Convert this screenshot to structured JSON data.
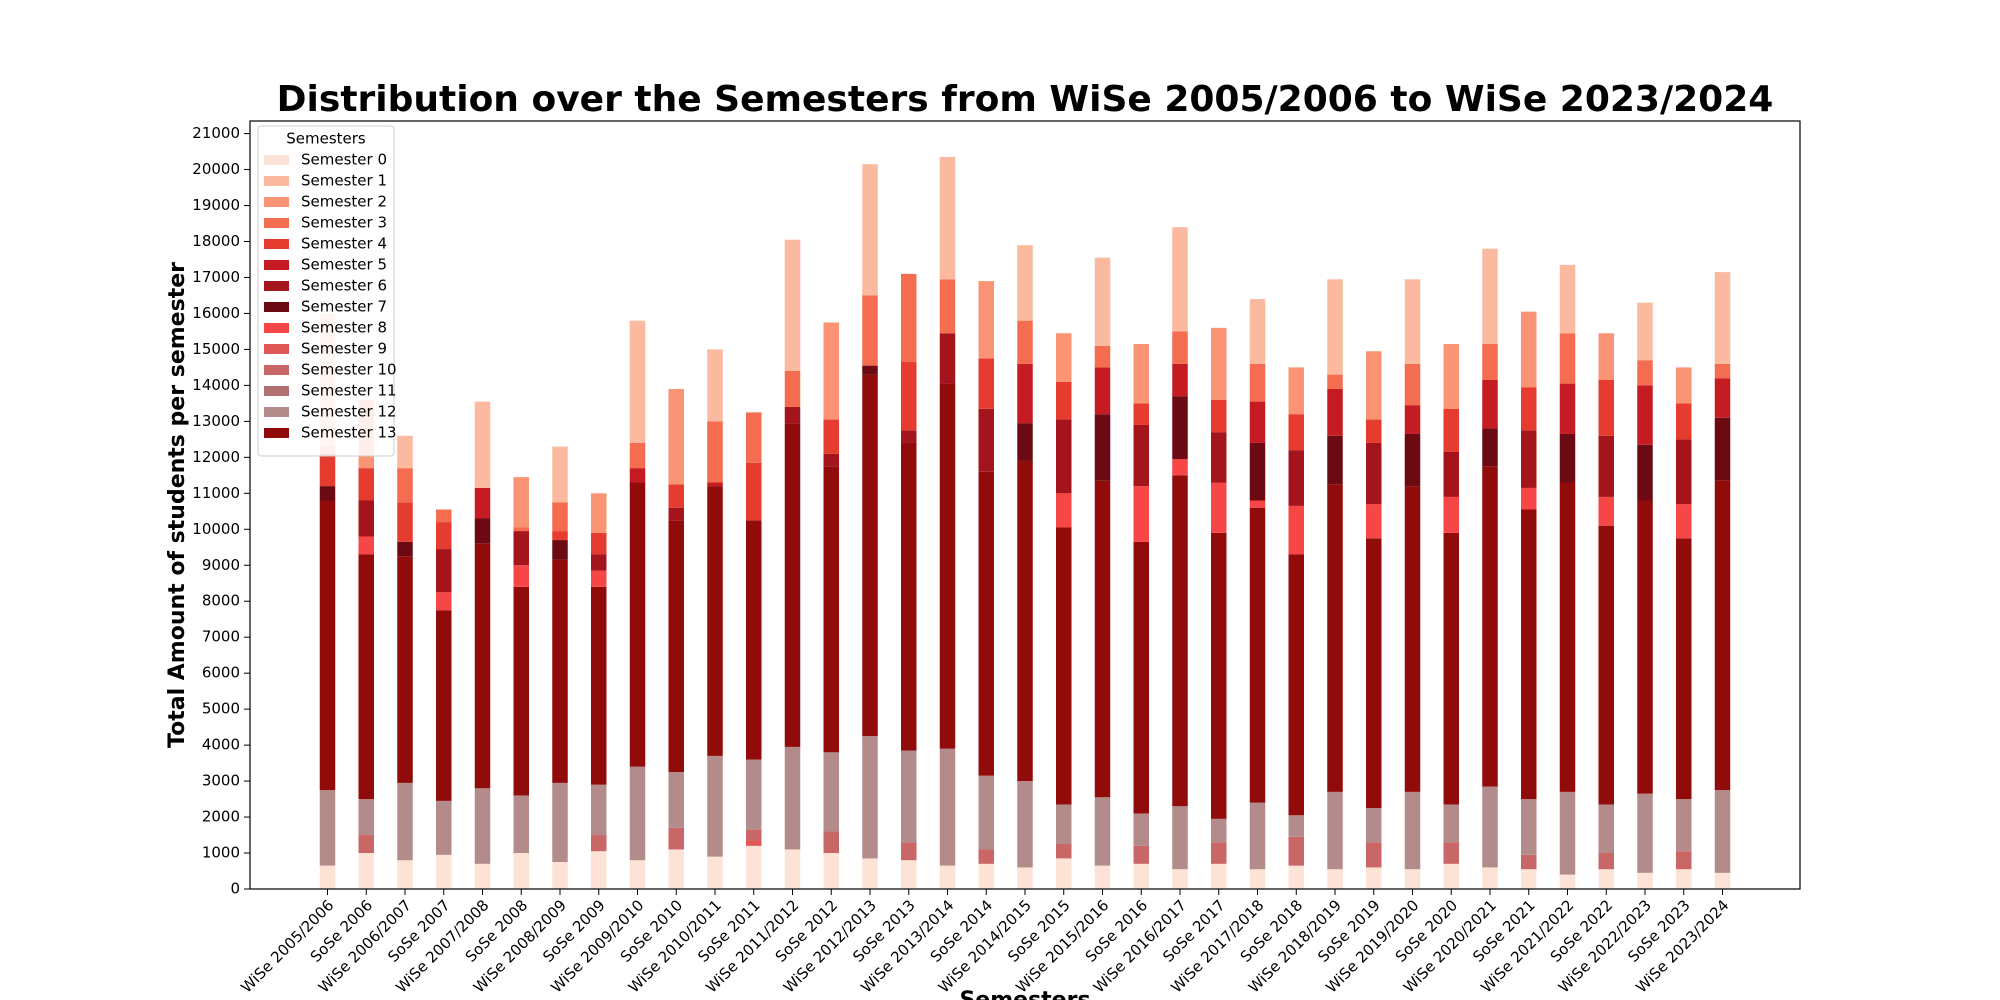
{
  "chart_data": {
    "type": "stacked_bar",
    "title": "Distribution over the Semesters from WiSe 2005/2006 to WiSe 2023/2024",
    "y_label": "Total Amount of students per semester",
    "x_label": "Semesters",
    "legend_title": "Semesters",
    "legend_position": "upper left",
    "categories": [
      "WiSe 2005/2006",
      "SoSe 2006",
      "WiSe 2006/2007",
      "SoSe 2007",
      "WiSe 2007/2008",
      "SoSe 2008",
      "WiSe 2008/2009",
      "SoSe 2009",
      "WiSe 2009/2010",
      "SoSe 2010",
      "WiSe 2010/2011",
      "SoSe 2011",
      "WiSe 2011/2012",
      "SoSe 2012",
      "WiSe 2012/2013",
      "SoSe 2013",
      "WiSe 2013/2014",
      "SoSe 2014",
      "WiSe 2014/2015",
      "SoSe 2015",
      "WiSe 2015/2016",
      "SoSe 2016",
      "WiSe 2016/2017",
      "SoSe 2017",
      "WiSe 2017/2018",
      "SoSe 2018",
      "WiSe 2018/2019",
      "SoSe 2019",
      "WiSe 2019/2020",
      "SoSe 2020",
      "WiSe 2020/2021",
      "SoSe 2021",
      "WiSe 2021/2022",
      "SoSe 2022",
      "WiSe 2022/2023",
      "SoSe 2023",
      "WiSe 2023/2024"
    ],
    "ylim": [
      0,
      21350
    ],
    "yticks": [
      0,
      1000,
      2000,
      3000,
      4000,
      5000,
      6000,
      7000,
      8000,
      9000,
      10000,
      11000,
      12000,
      13000,
      14000,
      15000,
      16000,
      17000,
      18000,
      19000,
      20000,
      21000
    ],
    "series": [
      {
        "name": "Semester 0",
        "color": "#fde3d6",
        "values": [
          650,
          1000,
          800,
          950,
          700,
          1000,
          750,
          1050,
          800,
          1100,
          900,
          1200,
          1100,
          1000,
          850,
          800,
          650,
          700,
          600,
          850,
          650,
          700,
          550,
          700,
          550,
          650,
          550,
          600,
          550,
          700,
          600,
          550,
          400,
          550,
          450,
          550,
          450
        ]
      },
      {
        "name": "Semester 1",
        "color": "#fbbaa0",
        "values": [
          3700,
          0,
          900,
          0,
          2400,
          0,
          1550,
          0,
          3400,
          0,
          2000,
          0,
          3650,
          0,
          3650,
          0,
          3400,
          0,
          2100,
          0,
          2450,
          0,
          2900,
          0,
          1800,
          0,
          2650,
          0,
          2350,
          0,
          2650,
          0,
          1900,
          0,
          1600,
          0,
          2550
        ]
      },
      {
        "name": "Semester 2",
        "color": "#fb9475",
        "values": [
          200,
          1900,
          0,
          0,
          0,
          1400,
          0,
          1100,
          0,
          2650,
          0,
          0,
          0,
          2700,
          0,
          0,
          0,
          2150,
          0,
          1350,
          0,
          1650,
          0,
          2000,
          0,
          1300,
          0,
          1900,
          0,
          1800,
          0,
          2100,
          0,
          1300,
          0,
          1000,
          0
        ]
      },
      {
        "name": "Semester 3",
        "color": "#f46d50",
        "values": [
          0,
          0,
          950,
          350,
          0,
          100,
          800,
          0,
          700,
          0,
          1700,
          1400,
          1000,
          0,
          1950,
          2450,
          1500,
          0,
          1200,
          0,
          600,
          0,
          900,
          0,
          1050,
          0,
          400,
          0,
          1150,
          0,
          1000,
          0,
          1400,
          0,
          700,
          0,
          400
        ]
      },
      {
        "name": "Semester 4",
        "color": "#e63c30",
        "values": [
          900,
          900,
          1100,
          750,
          0,
          0,
          250,
          600,
          0,
          650,
          0,
          1600,
          0,
          950,
          0,
          1900,
          0,
          1400,
          0,
          1050,
          0,
          600,
          0,
          900,
          0,
          1000,
          0,
          650,
          0,
          1200,
          0,
          1200,
          0,
          1550,
          0,
          1000,
          0
        ]
      },
      {
        "name": "Semester 5",
        "color": "#c41c22",
        "values": [
          0,
          0,
          0,
          0,
          850,
          0,
          0,
          0,
          400,
          0,
          100,
          0,
          0,
          0,
          0,
          0,
          0,
          0,
          1650,
          0,
          1300,
          0,
          900,
          0,
          1150,
          0,
          1300,
          0,
          800,
          0,
          1350,
          0,
          1400,
          0,
          1650,
          0,
          1100
        ]
      },
      {
        "name": "Semester 6",
        "color": "#a3141c",
        "values": [
          0,
          1000,
          0,
          1200,
          0,
          950,
          0,
          450,
          0,
          350,
          0,
          0,
          450,
          350,
          0,
          350,
          1400,
          1750,
          0,
          2050,
          0,
          1700,
          0,
          1400,
          0,
          1550,
          0,
          1700,
          0,
          1250,
          0,
          1600,
          0,
          1700,
          0,
          1800,
          0
        ]
      },
      {
        "name": "Semester 7",
        "color": "#6b0a12",
        "values": [
          400,
          0,
          400,
          0,
          700,
          0,
          550,
          0,
          0,
          0,
          0,
          0,
          0,
          0,
          250,
          0,
          0,
          0,
          1050,
          0,
          1850,
          0,
          1750,
          0,
          1600,
          0,
          1350,
          0,
          1450,
          0,
          1050,
          0,
          1350,
          0,
          1550,
          0,
          1750
        ]
      },
      {
        "name": "Semester 8",
        "color": "#f64646",
        "values": [
          0,
          500,
          0,
          500,
          0,
          600,
          0,
          450,
          0,
          0,
          0,
          0,
          0,
          0,
          0,
          0,
          0,
          0,
          0,
          950,
          0,
          1550,
          450,
          1400,
          200,
          1350,
          0,
          950,
          0,
          1000,
          0,
          600,
          0,
          800,
          0,
          950,
          0
        ]
      },
      {
        "name": "Semester 9",
        "color": "#df5757",
        "values": [
          0,
          0,
          0,
          0,
          0,
          0,
          0,
          0,
          0,
          0,
          0,
          150,
          0,
          0,
          0,
          0,
          0,
          0,
          0,
          0,
          0,
          0,
          0,
          0,
          0,
          0,
          0,
          0,
          0,
          0,
          0,
          0,
          0,
          0,
          0,
          0,
          0
        ]
      },
      {
        "name": "Semester 10",
        "color": "#c96666",
        "values": [
          0,
          500,
          0,
          0,
          0,
          0,
          0,
          450,
          0,
          600,
          0,
          300,
          0,
          600,
          0,
          500,
          0,
          400,
          0,
          400,
          0,
          500,
          0,
          600,
          0,
          800,
          0,
          700,
          0,
          600,
          0,
          400,
          0,
          450,
          0,
          500,
          0
        ]
      },
      {
        "name": "Semester 11",
        "color": "#b07070",
        "values": [
          0,
          0,
          0,
          0,
          0,
          0,
          0,
          0,
          0,
          0,
          0,
          0,
          0,
          0,
          0,
          0,
          0,
          0,
          0,
          0,
          0,
          0,
          0,
          0,
          0,
          0,
          0,
          0,
          0,
          0,
          0,
          0,
          0,
          0,
          0,
          0,
          0
        ]
      },
      {
        "name": "Semester 12",
        "color": "#b38b8b",
        "values": [
          2100,
          1000,
          2150,
          1500,
          2100,
          1600,
          2200,
          1400,
          2600,
          1550,
          2800,
          1950,
          2850,
          2200,
          3400,
          2550,
          3250,
          2050,
          2400,
          1100,
          1900,
          900,
          1750,
          650,
          1850,
          600,
          2150,
          950,
          2150,
          1050,
          2250,
          1550,
          2300,
          1350,
          2200,
          1450,
          2300
        ]
      },
      {
        "name": "Semester 13",
        "color": "#920b0b",
        "values": [
          8050,
          6800,
          6300,
          5300,
          6800,
          5800,
          6200,
          5500,
          7900,
          7000,
          7500,
          6650,
          9000,
          7950,
          10050,
          8550,
          10150,
          8450,
          8900,
          7700,
          8800,
          7550,
          9200,
          7950,
          8200,
          7250,
          8550,
          7500,
          8500,
          7550,
          8900,
          8050,
          8600,
          7750,
          8150,
          7250,
          8600
        ]
      }
    ]
  }
}
